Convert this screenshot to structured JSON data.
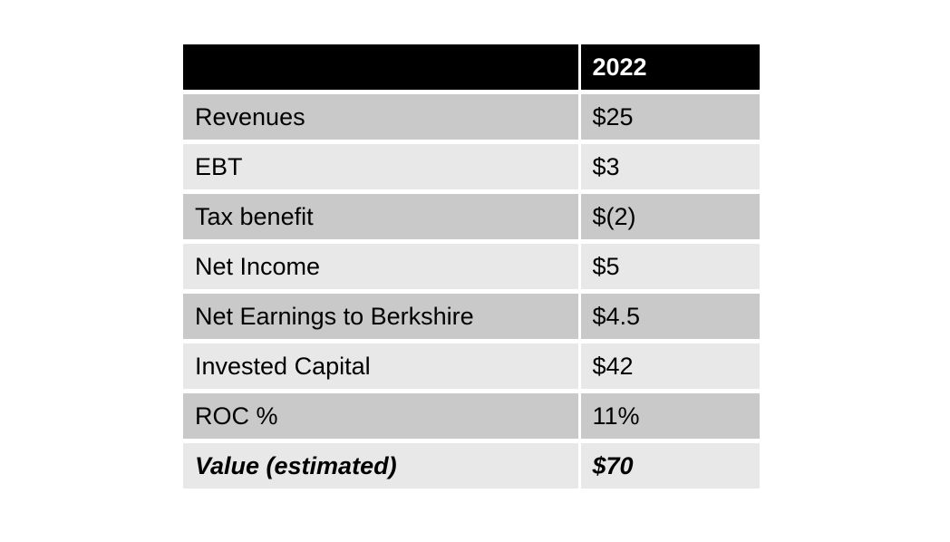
{
  "page": {
    "background_color": "#ffffff"
  },
  "table": {
    "header": {
      "label_column": "",
      "year_column": "2022"
    },
    "rows": [
      {
        "label": "Revenues",
        "value": "$25"
      },
      {
        "label": "EBT",
        "value": "$3"
      },
      {
        "label": "Tax benefit",
        "value": "$(2)"
      },
      {
        "label": "Net Income",
        "value": "$5"
      },
      {
        "label": "Net Earnings to Berkshire",
        "value": "$4.5"
      },
      {
        "label": "Invested Capital",
        "value": "$42"
      },
      {
        "label": "ROC %",
        "value": "11%"
      },
      {
        "label": "Value (estimated)",
        "value": "$70"
      }
    ],
    "colors": {
      "header_bg": "#000000",
      "header_text": "#ffffff",
      "row_dark": "#c9c9c9",
      "row_light": "#e8e8e8",
      "body_text": "#000000",
      "grid_gap": "#ffffff"
    }
  },
  "chart_data": {
    "type": "table",
    "title": "",
    "columns": [
      "",
      "2022"
    ],
    "rows": [
      [
        "Revenues",
        "$25"
      ],
      [
        "EBT",
        "$3"
      ],
      [
        "Tax benefit",
        "$(2)"
      ],
      [
        "Net Income",
        "$5"
      ],
      [
        "Net Earnings to Berkshire",
        "$4.5"
      ],
      [
        "Invested Capital",
        "$42"
      ],
      [
        "ROC %",
        "11%"
      ],
      [
        "Value (estimated)",
        "$70"
      ]
    ],
    "notes": "Final row (Value estimated) rendered bold italic; header row black with white text; body rows alternate gray bands; values in billions of dollars (as shown)."
  }
}
